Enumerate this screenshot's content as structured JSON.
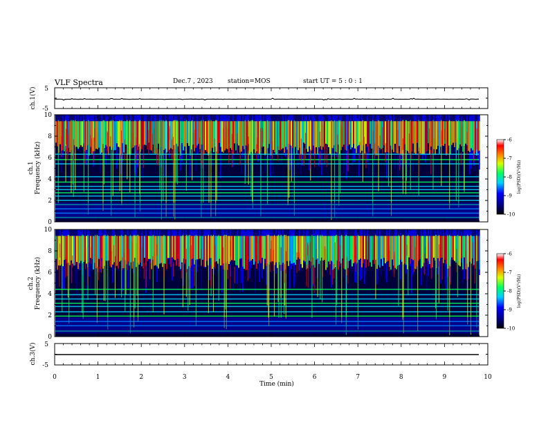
{
  "header": {
    "title": "VLF Spectra",
    "date": "Dec.7 , 2023",
    "station": "station=MOS",
    "start_ut": "start UT =  5 : 0  : 1"
  },
  "chart_data": [
    {
      "type": "line",
      "ylabel": "ch.1(V)",
      "ylim": [
        -5,
        5
      ],
      "yticks": [
        "5",
        "-5"
      ],
      "xlim": [
        0,
        10
      ],
      "values": "flat trace near -0.5 V with small spikes across 0-9.8 min"
    },
    {
      "type": "heatmap",
      "ylabel": [
        "ch.1",
        "Frequency (kHz)"
      ],
      "xlim": [
        0,
        10
      ],
      "ylim": [
        0,
        10
      ],
      "data_extent_x": [
        0,
        9.8
      ],
      "yticks": [
        "0",
        "2",
        "4",
        "6",
        "8",
        "10"
      ],
      "colorbar": {
        "label": "log(PSD)(V²/Hz)",
        "range": [
          -10,
          -6
        ],
        "ticks": [
          "-6",
          "-7",
          "-8",
          "-9",
          "-10"
        ]
      },
      "colors": [
        "#00007f",
        "#0000ff",
        "#00d0ff",
        "#00ff60",
        "#d8ff00",
        "#ff8000",
        "#ff0000",
        "#ffffff"
      ],
      "bands_khz": [
        0.4,
        0.8,
        1.2,
        1.6,
        2.0,
        2.4,
        2.7,
        3.0,
        3.3,
        3.7,
        4.2,
        5.4,
        5.8,
        6.3
      ]
    },
    {
      "type": "heatmap",
      "ylabel": [
        "ch.2",
        "Frequency (kHz)"
      ],
      "xlim": [
        0,
        10
      ],
      "ylim": [
        0,
        10
      ],
      "data_extent_x": [
        0,
        9.8
      ],
      "yticks": [
        "0",
        "2",
        "4",
        "6",
        "8",
        "10"
      ],
      "colorbar": {
        "label": "log(PSD)(V²/Hz)",
        "range": [
          -10,
          -6
        ],
        "ticks": [
          "-6",
          "-7",
          "-8",
          "-9",
          "-10"
        ]
      },
      "colors": [
        "#00007f",
        "#0000ff",
        "#00d0ff",
        "#00ff60",
        "#d8ff00",
        "#ff8000",
        "#ff0000",
        "#ffffff"
      ],
      "bands_khz": [
        0.5,
        1.0,
        1.4,
        1.9,
        2.3,
        2.8,
        3.1,
        3.5,
        3.9,
        4.4
      ]
    },
    {
      "type": "line",
      "ylabel": "ch.3(V)",
      "ylim": [
        -5,
        5
      ],
      "yticks": [
        "5",
        "-5"
      ],
      "xlim": [
        0,
        10
      ],
      "values": "flat trace near -1.5 V across 0-9.8 min"
    }
  ],
  "x_axis": {
    "xlabel": "Time (min)",
    "ticks": [
      "0",
      "1",
      "2",
      "3",
      "4",
      "5",
      "6",
      "7",
      "8",
      "9",
      "10"
    ]
  }
}
